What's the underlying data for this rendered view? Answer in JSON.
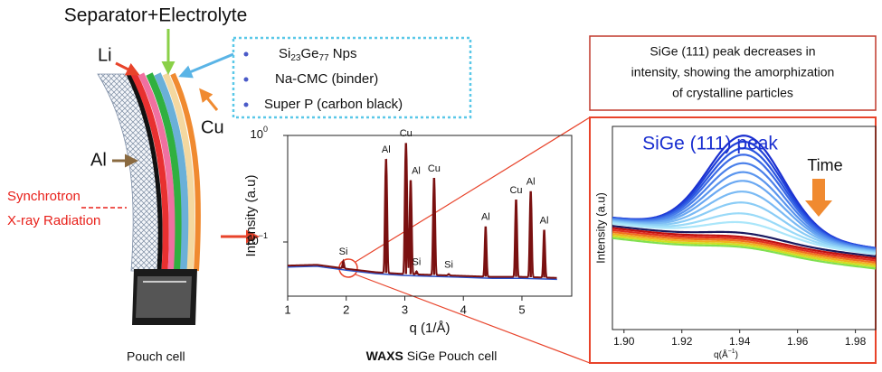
{
  "header": {
    "separator_label": "Separator+Electrolyte",
    "li_label": "Li",
    "cu_label": "Cu",
    "al_label": "Al",
    "synchrotron_line1": "Synchrotron",
    "synchrotron_line2": "X-ray Radiation",
    "pouch_caption": "Pouch cell"
  },
  "legend": {
    "item0": [
      "Si",
      "23",
      "Ge",
      "77",
      " Nps"
    ],
    "item1": "Na-CMC (binder)",
    "item2": "Super P (carbon black)"
  },
  "callout": [
    "SiGe (111) peak decreases in",
    "intensity, showing the amorphization",
    "of crystalline particles"
  ],
  "chart_data": [
    {
      "type": "line",
      "title": [
        "WAXS",
        " SiGe Pouch cell"
      ],
      "x_label": "q (1/Å)",
      "y_label": "Intensity (a.u)",
      "log_y": true,
      "xlim": [
        1,
        5.85
      ],
      "ylim": [
        0.031,
        1
      ],
      "xticks": [
        1,
        2,
        3,
        4,
        5
      ],
      "yticks": [
        {
          "value": 1,
          "label": "10",
          "exponent": "0"
        },
        {
          "value": 0.1,
          "label": "10",
          "exponent": "−1"
        }
      ],
      "color": "#7a1010",
      "baseline": {
        "x": [
          1,
          1.5,
          2,
          2.5,
          3,
          3.5,
          4,
          4.5,
          5,
          5.6
        ],
        "values": [
          0.06,
          0.061,
          0.056,
          0.052,
          0.05,
          0.049,
          0.048,
          0.047,
          0.047,
          0.046
        ]
      },
      "peaks": [
        {
          "label": "Si",
          "q": 1.95,
          "intensity": 0.066
        },
        {
          "label": "Al",
          "q": 2.68,
          "intensity": 0.6
        },
        {
          "label": "Cu",
          "q": 3.02,
          "intensity": 0.85
        },
        {
          "label": "Al",
          "q": 3.1,
          "intensity": 0.38
        },
        {
          "label": "Si",
          "q": 3.2,
          "intensity": 0.053
        },
        {
          "label": "Cu",
          "q": 3.5,
          "intensity": 0.4
        },
        {
          "label": "Si",
          "q": 3.75,
          "intensity": 0.05
        },
        {
          "label": "Al",
          "q": 4.38,
          "intensity": 0.14
        },
        {
          "label": "Cu",
          "q": 4.9,
          "intensity": 0.25
        },
        {
          "label": "Al",
          "q": 5.15,
          "intensity": 0.3
        },
        {
          "label": "Al",
          "q": 5.38,
          "intensity": 0.13
        }
      ]
    },
    {
      "type": "line",
      "title": "SiGe (111) peak",
      "annotation": "Time",
      "x_label": [
        "q(Å",
        "−1",
        ")"
      ],
      "y_label": "Intensity (a.u)",
      "xlim": [
        1.896,
        1.987
      ],
      "ylim": [
        0,
        1
      ],
      "xticks": [
        {
          "value": 1.9,
          "label": "1.90"
        },
        1.92,
        1.94,
        1.96,
        1.98
      ],
      "peak_center": 1.942,
      "peak_width": 0.013,
      "series": [
        {
          "color": "#1a2fd0",
          "amplitude": 0.48,
          "offset": 0.55
        },
        {
          "color": "#2040d8",
          "amplitude": 0.45,
          "offset": 0.55
        },
        {
          "color": "#2a55e0",
          "amplitude": 0.42,
          "offset": 0.548
        },
        {
          "color": "#3a6ae6",
          "amplitude": 0.39,
          "offset": 0.546
        },
        {
          "color": "#4a80ea",
          "amplitude": 0.35,
          "offset": 0.544
        },
        {
          "color": "#5a95ee",
          "amplitude": 0.31,
          "offset": 0.54
        },
        {
          "color": "#6aa8f2",
          "amplitude": 0.27,
          "offset": 0.537
        },
        {
          "color": "#7abaf4",
          "amplitude": 0.22,
          "offset": 0.534
        },
        {
          "color": "#8accf6",
          "amplitude": 0.17,
          "offset": 0.53
        },
        {
          "color": "#9adaf8",
          "amplitude": 0.12,
          "offset": 0.526
        },
        {
          "color": "#aae6fa",
          "amplitude": 0.08,
          "offset": 0.522
        },
        {
          "color": "#1a1a60",
          "amplitude": 0.04,
          "offset": 0.51
        },
        {
          "color": "#c01010",
          "amplitude": 0.03,
          "offset": 0.5
        },
        {
          "color": "#e03020",
          "amplitude": 0.03,
          "offset": 0.49
        },
        {
          "color": "#f07020",
          "amplitude": 0.03,
          "offset": 0.48
        },
        {
          "color": "#f0b020",
          "amplitude": 0.03,
          "offset": 0.47
        },
        {
          "color": "#d0e020",
          "amplitude": 0.03,
          "offset": 0.46
        },
        {
          "color": "#80e050",
          "amplitude": 0.03,
          "offset": 0.45
        }
      ]
    }
  ]
}
